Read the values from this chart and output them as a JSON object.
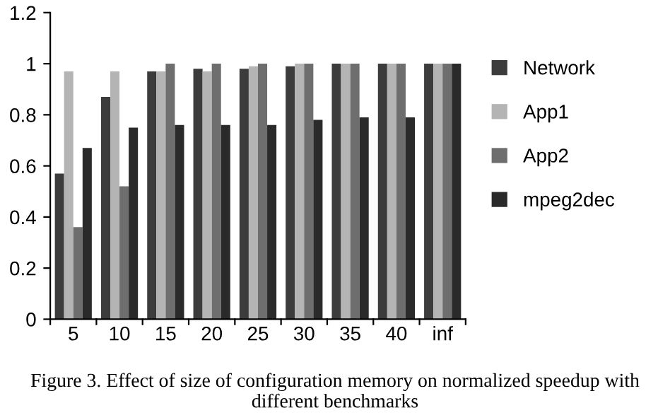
{
  "chart_data": {
    "type": "bar",
    "categories": [
      "5",
      "10",
      "15",
      "20",
      "25",
      "30",
      "35",
      "40",
      "inf"
    ],
    "series": [
      {
        "name": "Network",
        "color": "#3c3c3c",
        "values": [
          0.57,
          0.87,
          0.97,
          0.98,
          0.98,
          0.99,
          1.0,
          1.0,
          1.0
        ]
      },
      {
        "name": "App1",
        "color": "#b4b4b4",
        "values": [
          0.97,
          0.97,
          0.97,
          0.97,
          0.99,
          1.0,
          1.0,
          1.0,
          1.0
        ]
      },
      {
        "name": "App2",
        "color": "#6e6e6e",
        "values": [
          0.36,
          0.52,
          1.0,
          1.0,
          1.0,
          1.0,
          1.0,
          1.0,
          1.0
        ]
      },
      {
        "name": "mpeg2dec",
        "color": "#2a2a2a",
        "values": [
          0.67,
          0.75,
          0.76,
          0.76,
          0.76,
          0.78,
          0.79,
          0.79,
          1.0
        ]
      }
    ],
    "ylim": [
      0,
      1.2
    ],
    "yticks": [
      0,
      0.2,
      0.4,
      0.6,
      0.8,
      1,
      1.2
    ],
    "legend": "right",
    "grid": false,
    "annotations": [
      "Figure 3. Effect of size of configuration memory on normalized speedup with different benchmarks"
    ]
  }
}
